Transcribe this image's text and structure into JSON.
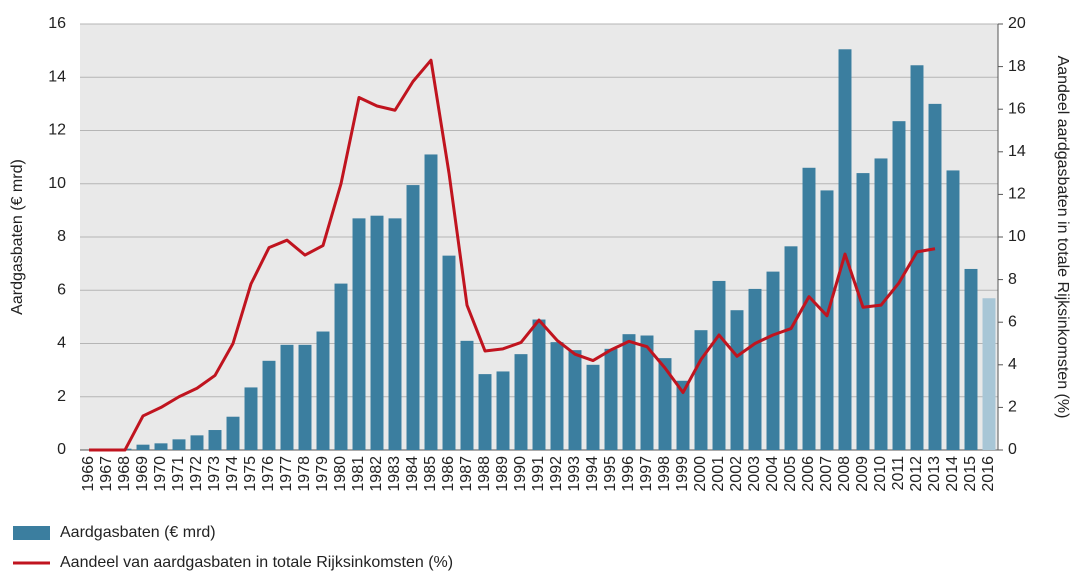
{
  "chart_data": {
    "type": "bar_line",
    "categories": [
      "1966",
      "1967",
      "1968",
      "1969",
      "1970",
      "1971",
      "1972",
      "1973",
      "1974",
      "1975",
      "1976",
      "1977",
      "1978",
      "1979",
      "1980",
      "1981",
      "1982",
      "1983",
      "1984",
      "1985",
      "1986",
      "1987",
      "1988",
      "1989",
      "1990",
      "1991",
      "1992",
      "1993",
      "1994",
      "1995",
      "1996",
      "1997",
      "1998",
      "1999",
      "2000",
      "2001",
      "2002",
      "2003",
      "2004",
      "2005",
      "2006",
      "2007",
      "2008",
      "2009",
      "2010",
      "2011",
      "2012",
      "2013",
      "2014",
      "2015",
      "2016"
    ],
    "series": [
      {
        "name": "Aardgasbaten (€ mrd)",
        "type": "bar",
        "color": "#3b7e9f",
        "colors": [
          "#3b7e9f",
          "#3b7e9f",
          "#3b7e9f",
          "#3b7e9f",
          "#3b7e9f",
          "#3b7e9f",
          "#3b7e9f",
          "#3b7e9f",
          "#3b7e9f",
          "#3b7e9f",
          "#3b7e9f",
          "#3b7e9f",
          "#3b7e9f",
          "#3b7e9f",
          "#3b7e9f",
          "#3b7e9f",
          "#3b7e9f",
          "#3b7e9f",
          "#3b7e9f",
          "#3b7e9f",
          "#3b7e9f",
          "#3b7e9f",
          "#3b7e9f",
          "#3b7e9f",
          "#3b7e9f",
          "#3b7e9f",
          "#3b7e9f",
          "#3b7e9f",
          "#3b7e9f",
          "#3b7e9f",
          "#3b7e9f",
          "#3b7e9f",
          "#3b7e9f",
          "#3b7e9f",
          "#3b7e9f",
          "#3b7e9f",
          "#3b7e9f",
          "#3b7e9f",
          "#3b7e9f",
          "#3b7e9f",
          "#3b7e9f",
          "#3b7e9f",
          "#3b7e9f",
          "#3b7e9f",
          "#3b7e9f",
          "#3b7e9f",
          "#3b7e9f",
          "#3b7e9f",
          "#3b7e9f",
          "#3b7e9f",
          "#a8c6d6"
        ],
        "values": [
          0,
          0,
          0.05,
          0.2,
          0.25,
          0.4,
          0.55,
          0.75,
          1.25,
          2.35,
          3.35,
          3.95,
          3.95,
          4.45,
          6.25,
          8.7,
          8.8,
          8.7,
          9.95,
          11.1,
          7.3,
          4.1,
          2.85,
          2.95,
          3.6,
          4.9,
          4.05,
          3.75,
          3.2,
          3.8,
          4.35,
          4.3,
          3.45,
          2.6,
          4.5,
          6.35,
          5.25,
          6.05,
          6.7,
          7.65,
          10.6,
          9.75,
          15.05,
          10.4,
          10.95,
          12.35,
          14.45,
          13.0,
          10.5,
          6.8,
          5.7
        ]
      },
      {
        "name": "Aandeel van aardgasbaten in totale Rijksinkomsten (%)",
        "type": "line",
        "color": "#c0141f",
        "axis": "y2",
        "values": [
          0,
          0,
          0,
          1.6,
          2.0,
          2.5,
          2.9,
          3.5,
          5.0,
          7.8,
          9.5,
          9.85,
          9.15,
          9.6,
          12.5,
          16.55,
          16.15,
          15.95,
          17.3,
          18.3,
          13.0,
          6.8,
          4.65,
          4.75,
          5.05,
          6.1,
          5.15,
          4.5,
          4.2,
          4.7,
          5.1,
          4.85,
          3.85,
          2.7,
          4.25,
          5.4,
          4.4,
          5.0,
          5.4,
          5.7,
          7.2,
          6.3,
          9.2,
          6.7,
          6.8,
          7.85,
          9.3,
          9.45,
          null,
          null,
          null
        ]
      }
    ],
    "y_label": "Aardgasbaten (€ mrd)",
    "y2_label": "Aandeel aardgasbaten in totale Rijksinkomsten (%)",
    "ylim": [
      0,
      16
    ],
    "yticks": [
      0,
      2,
      4,
      6,
      8,
      10,
      12,
      14,
      16
    ],
    "y2lim": [
      0,
      20
    ],
    "y2ticks": [
      0,
      2,
      4,
      6,
      8,
      10,
      12,
      14,
      16,
      18,
      20
    ],
    "grid": true,
    "legend": "bottom-left"
  }
}
